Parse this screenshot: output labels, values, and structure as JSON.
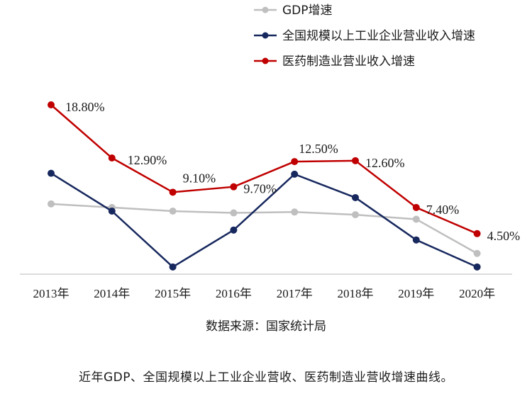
{
  "chart_data": {
    "type": "line",
    "categories": [
      "2013年",
      "2014年",
      "2015年",
      "2016年",
      "2017年",
      "2018年",
      "2019年",
      "2020年"
    ],
    "ylim": [
      0,
      20
    ],
    "series": [
      {
        "name": "GDP增速",
        "color": "#bfbfbf",
        "values": [
          7.8,
          7.4,
          7.0,
          6.8,
          6.9,
          6.6,
          6.1,
          2.3
        ]
      },
      {
        "name": "全国规模以上工业企业营业收入增速",
        "color": "#17285e",
        "values": [
          11.2,
          7.0,
          0.8,
          4.9,
          11.1,
          8.5,
          3.8,
          0.8
        ]
      },
      {
        "name": "医药制造业营业收入增速",
        "color": "#c00000",
        "values": [
          18.8,
          12.9,
          9.1,
          9.7,
          12.5,
          12.6,
          7.4,
          4.5
        ],
        "labels": [
          "18.80%",
          "12.90%",
          "9.10%",
          "9.70%",
          "12.50%",
          "12.60%",
          "7.40%",
          "4.50%"
        ]
      }
    ],
    "source": "数据来源：国家统计局"
  },
  "caption": "近年GDP、全国规模以上工业企业营收、医药制造业营收增速曲线。"
}
